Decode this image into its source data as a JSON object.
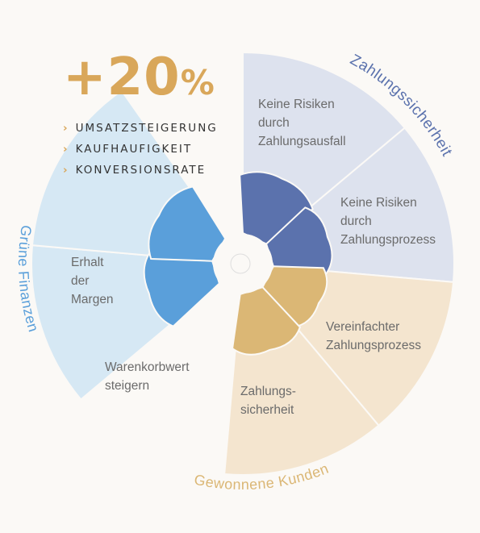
{
  "headline": {
    "value": "+20",
    "unit": "%"
  },
  "kpis": [
    "UMSATZSTEIGERUNG",
    "KAUFHAUFIGKEIT",
    "KONVERSIONSRATE"
  ],
  "kpi_marker": "›",
  "groups": [
    {
      "name": "Zahlungssicherheit",
      "color": "#5b72ad",
      "light": "#dde2ee"
    },
    {
      "name": "Gewonnene Kunden",
      "color": "#dbb775",
      "light": "#f4e5cf"
    },
    {
      "name": "Grüne Finanzen",
      "color": "#5a9fda",
      "light": "#d6e8f4"
    }
  ],
  "segments": [
    {
      "group": 0,
      "lines": [
        "Keine Risiken",
        "durch",
        "Zahlungsausfall"
      ]
    },
    {
      "group": 0,
      "lines": [
        "Keine Risiken",
        "durch",
        "Zahlungsprozess"
      ]
    },
    {
      "group": 1,
      "lines": [
        "Vereinfachter",
        "Zahlungsprozess"
      ]
    },
    {
      "group": 1,
      "lines": [
        "Zahlungs-",
        "sicherheit"
      ]
    },
    {
      "group": 2,
      "lines": [
        "Warenkorbwert",
        "steigern"
      ]
    },
    {
      "group": 2,
      "lines": [
        "Erhalt",
        "der",
        "Margen"
      ]
    }
  ]
}
